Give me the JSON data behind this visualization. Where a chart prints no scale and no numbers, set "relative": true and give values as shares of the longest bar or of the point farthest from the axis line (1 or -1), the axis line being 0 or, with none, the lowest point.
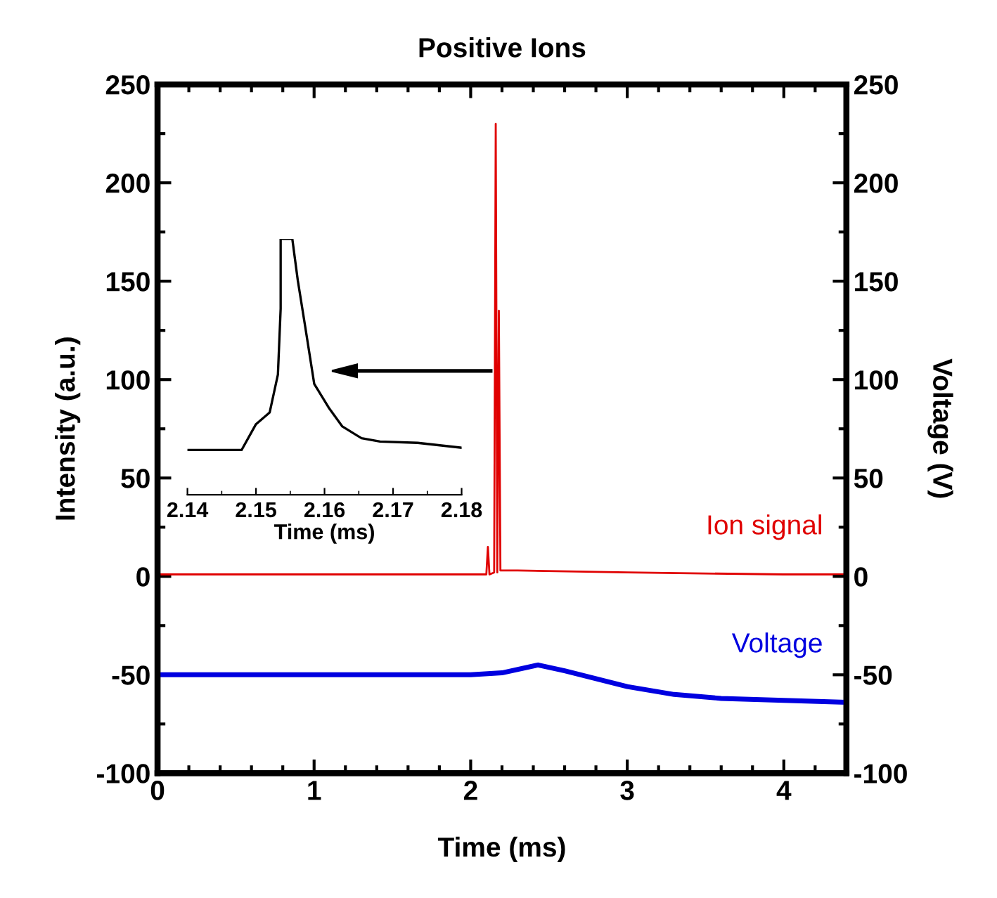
{
  "chart_data": [
    {
      "type": "line",
      "title": "Positive Ions",
      "xlabel": "Time (ms)",
      "ylabel": "Intensity (a.u.)",
      "y2label": "Voltage (V)",
      "xlim": [
        0,
        4.4
      ],
      "xticks": [
        0,
        1,
        2,
        3,
        4
      ],
      "ylim": [
        -100,
        250
      ],
      "yticks": [
        -100,
        -50,
        0,
        50,
        100,
        150,
        200,
        250
      ],
      "y2lim": [
        -100,
        250
      ],
      "y2ticks": [
        -100,
        -50,
        0,
        50,
        100,
        150,
        200,
        250
      ],
      "grid": false,
      "legend": false,
      "marker": "none",
      "line_style": "solid",
      "series": [
        {
          "name": "Ion signal",
          "color": "#e00000",
          "x": [
            0,
            0.5,
            1,
            1.5,
            2.0,
            2.1,
            2.11,
            2.12,
            2.15,
            2.16,
            2.17,
            2.18,
            2.19,
            2.3,
            3,
            4,
            4.4
          ],
          "values": [
            1,
            1,
            1,
            1,
            1,
            1,
            15,
            1,
            2,
            230,
            2,
            135,
            3,
            3,
            2,
            1,
            1
          ]
        },
        {
          "name": "Voltage",
          "color": "#0000e0",
          "axis": "y2",
          "x": [
            0,
            1,
            2,
            2.2,
            2.43,
            2.6,
            3,
            3.3,
            3.6,
            4,
            4.4
          ],
          "values": [
            -50,
            -50,
            -50,
            -49,
            -45,
            -48,
            -56,
            -60,
            -62,
            -63,
            -64
          ]
        }
      ]
    },
    {
      "type": "line",
      "relative": true,
      "xlabel": "Time (ms)",
      "xlim": [
        2.14,
        2.18
      ],
      "xticks": [
        2.14,
        2.15,
        2.16,
        2.17,
        2.18
      ],
      "tick_labels": "x",
      "marker": "none",
      "line_style": "solid",
      "series": [
        {
          "color": "#000000",
          "x": [
            2.14,
            2.1479,
            2.15,
            2.152,
            2.1532,
            2.1536,
            2.1536,
            2.1553,
            2.1561,
            2.1572,
            2.1585,
            2.1606,
            2.1626,
            2.1654,
            2.1681,
            2.1736,
            2.18
          ],
          "values": [
            0.175,
            0.175,
            0.276,
            0.322,
            0.47,
            0.727,
            1.0,
            1.0,
            0.838,
            0.654,
            0.433,
            0.341,
            0.267,
            0.221,
            0.208,
            0.203,
            0.184
          ]
        }
      ]
    }
  ]
}
